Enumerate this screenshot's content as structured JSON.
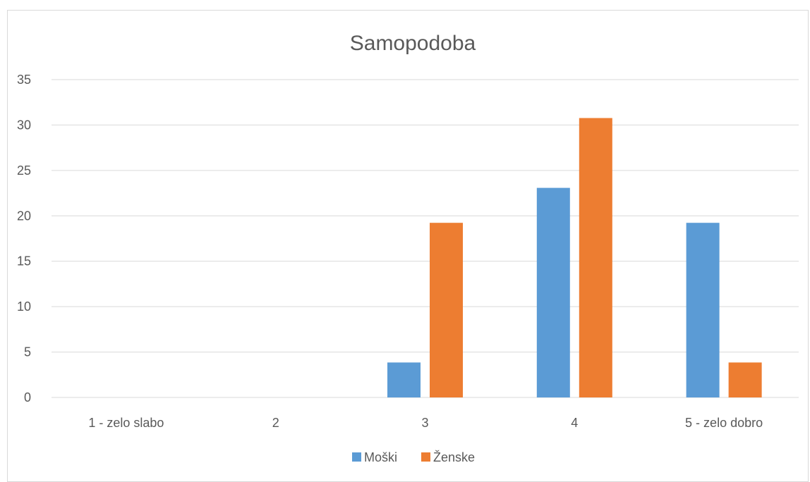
{
  "chart_data": {
    "type": "bar",
    "title": "Samopodoba",
    "xlabel": "",
    "ylabel": "",
    "categories": [
      "1 - zelo slabo",
      "2",
      "3",
      "4",
      "5 - zelo dobro"
    ],
    "series": [
      {
        "name": "Moški",
        "color": "#5b9bd5",
        "values": [
          0,
          0,
          3.85,
          23.08,
          19.23
        ]
      },
      {
        "name": "Ženske",
        "color": "#ed7d31",
        "values": [
          0,
          0,
          19.23,
          30.77,
          3.85
        ]
      }
    ],
    "ylim": [
      0,
      35
    ],
    "yticks": [
      "0",
      "5",
      "10",
      "15",
      "20",
      "25",
      "30",
      "35"
    ],
    "grid": true,
    "legend_position": "bottom"
  }
}
